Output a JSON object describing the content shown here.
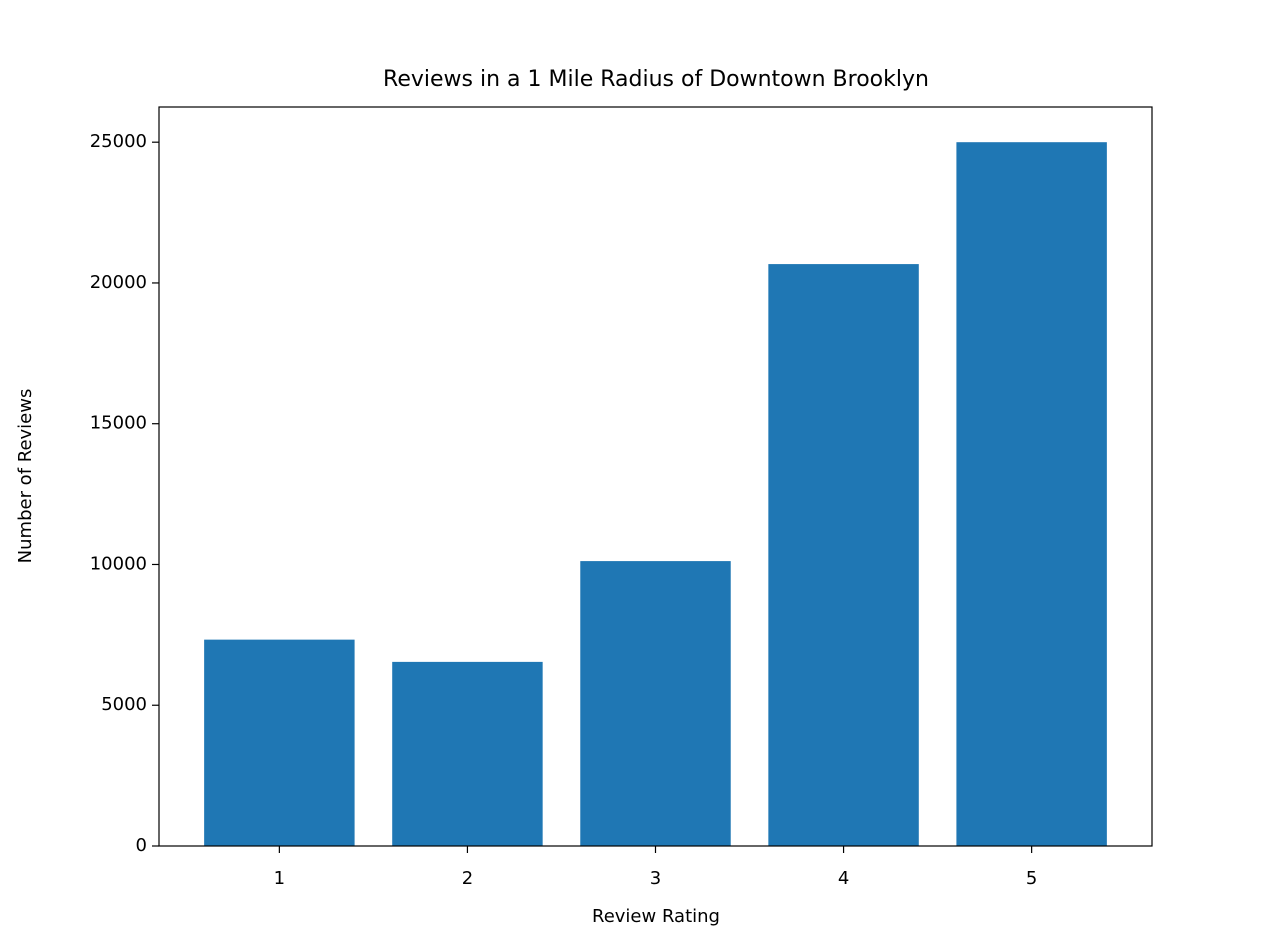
{
  "chart_data": {
    "type": "bar",
    "title": "Reviews in a 1 Mile Radius of Downtown Brooklyn",
    "xlabel": "Review Rating",
    "ylabel": "Number of Reviews",
    "x": [
      1,
      2,
      3,
      4,
      5
    ],
    "values": [
      7330,
      6540,
      10120,
      20670,
      25000
    ],
    "color": "#1f77b4",
    "xlim": [
      0.36,
      5.64
    ],
    "xticks": [
      1,
      2,
      3,
      4,
      5
    ],
    "ylim": [
      0,
      26250
    ],
    "yticks": [
      0,
      5000,
      10000,
      15000,
      20000,
      25000
    ],
    "grid": false
  }
}
